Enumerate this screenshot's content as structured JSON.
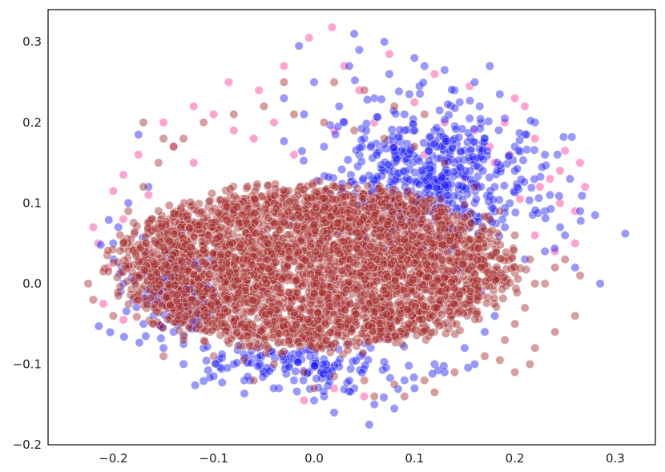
{
  "chart_data": {
    "type": "scatter",
    "title": "",
    "xlabel": "",
    "ylabel": "",
    "xlim": [
      -0.265,
      0.34
    ],
    "ylim": [
      -0.2,
      0.34
    ],
    "x_ticks": [
      -0.2,
      -0.1,
      0.0,
      0.1,
      0.2,
      0.3
    ],
    "y_ticks": [
      -0.2,
      -0.1,
      0.0,
      0.1,
      0.2,
      0.3
    ],
    "x_tick_labels": [
      "−0.2",
      "−0.1",
      "0.0",
      "0.1",
      "0.2",
      "0.3"
    ],
    "y_tick_labels": [
      "−0.2",
      "−0.1",
      "0.0",
      "0.1",
      "0.2",
      "0.3"
    ],
    "grid": false,
    "legend": "none",
    "marker_alpha": 0.45,
    "series": [
      {
        "color": "#ff3399",
        "points": [
          [
            0.018,
            0.318
          ],
          [
            -0.005,
            0.305
          ],
          [
            0.075,
            0.285
          ],
          [
            0.12,
            0.26
          ],
          [
            0.155,
            0.245
          ],
          [
            -0.03,
            0.27
          ],
          [
            -0.085,
            0.25
          ],
          [
            -0.12,
            0.22
          ],
          [
            -0.15,
            0.2
          ],
          [
            -0.175,
            0.16
          ],
          [
            -0.19,
            0.135
          ],
          [
            -0.2,
            0.115
          ],
          [
            -0.22,
            0.07
          ],
          [
            -0.215,
            0.05
          ],
          [
            -0.205,
            0.02
          ],
          [
            -0.21,
            -0.025
          ],
          [
            -0.19,
            -0.045
          ],
          [
            0.19,
            0.2
          ],
          [
            0.22,
            0.18
          ],
          [
            0.25,
            0.165
          ],
          [
            0.265,
            0.15
          ],
          [
            0.27,
            0.12
          ],
          [
            0.26,
            0.09
          ],
          [
            0.245,
            0.1
          ],
          [
            0.235,
            0.13
          ],
          [
            0.21,
            0.22
          ],
          [
            0.2,
            0.23
          ],
          [
            0.16,
            0.19
          ],
          [
            0.175,
            0.17
          ],
          [
            -0.01,
            -0.145
          ],
          [
            0.02,
            -0.13
          ],
          [
            0.05,
            -0.14
          ],
          [
            -0.055,
            0.24
          ],
          [
            -0.1,
            0.21
          ],
          [
            -0.14,
            0.17
          ],
          [
            -0.165,
            0.11
          ],
          [
            0.245,
            0.14
          ],
          [
            0.225,
            0.12
          ],
          [
            0.18,
            0.15
          ],
          [
            0.13,
            0.2
          ],
          [
            0.1,
            0.225
          ],
          [
            0.06,
            0.2
          ],
          [
            0.02,
            0.19
          ],
          [
            -0.02,
            0.16
          ],
          [
            -0.06,
            0.18
          ],
          [
            0.26,
            0.05
          ],
          [
            0.24,
            0.04
          ],
          [
            0.22,
            0.06
          ],
          [
            -0.19,
            0.08
          ],
          [
            -0.175,
            -0.02
          ],
          [
            0.11,
            0.16
          ],
          [
            0.15,
            0.13
          ],
          [
            0.08,
            0.17
          ],
          [
            -0.12,
            0.15
          ],
          [
            -0.08,
            0.19
          ],
          [
            0.205,
            0.105
          ],
          [
            0.195,
            0.16
          ],
          [
            0.045,
            0.24
          ],
          [
            0.03,
            0.27
          ],
          [
            -0.04,
            0.2
          ]
        ]
      },
      {
        "color": "#1a1aff",
        "points": [
          [
            -0.015,
            0.295
          ],
          [
            0.04,
            0.31
          ],
          [
            0.07,
            0.3
          ],
          [
            0.1,
            0.28
          ],
          [
            0.13,
            0.265
          ],
          [
            0.14,
            0.24
          ],
          [
            0.165,
            0.22
          ],
          [
            0.19,
            0.205
          ],
          [
            0.21,
            0.185
          ],
          [
            0.23,
            0.16
          ],
          [
            0.255,
            0.13
          ],
          [
            0.28,
            0.085
          ],
          [
            0.31,
            0.062
          ],
          [
            0.285,
            0.0
          ],
          [
            0.245,
            0.07
          ],
          [
            0.23,
            0.09
          ],
          [
            0.2,
            0.14
          ],
          [
            0.18,
            0.12
          ],
          [
            0.22,
            0.2
          ],
          [
            0.17,
            0.18
          ],
          [
            0.12,
            0.19
          ],
          [
            0.09,
            0.21
          ],
          [
            0.06,
            0.23
          ],
          [
            0.025,
            0.22
          ],
          [
            0.0,
            0.25
          ],
          [
            -0.03,
            0.23
          ],
          [
            0.05,
            0.18
          ],
          [
            0.08,
            0.15
          ],
          [
            0.11,
            0.13
          ],
          [
            0.14,
            0.15
          ],
          [
            0.16,
            0.1
          ],
          [
            0.19,
            0.07
          ],
          [
            0.21,
            0.03
          ],
          [
            0.18,
            -0.04
          ],
          [
            0.15,
            -0.08
          ],
          [
            0.12,
            -0.1
          ],
          [
            0.09,
            -0.12
          ],
          [
            0.06,
            -0.15
          ],
          [
            0.04,
            -0.13
          ],
          [
            0.01,
            -0.14
          ],
          [
            -0.02,
            -0.12
          ],
          [
            -0.05,
            -0.11
          ],
          [
            -0.08,
            -0.1
          ],
          [
            -0.11,
            -0.08
          ],
          [
            -0.14,
            -0.06
          ],
          [
            -0.16,
            -0.04
          ],
          [
            -0.18,
            -0.02
          ],
          [
            -0.19,
            0.0
          ],
          [
            -0.2,
            0.03
          ],
          [
            -0.195,
            0.07
          ],
          [
            -0.185,
            0.1
          ],
          [
            -0.175,
            0.185
          ],
          [
            -0.165,
            0.12
          ],
          [
            -0.13,
            -0.075
          ],
          [
            0.055,
            -0.175
          ],
          [
            0.08,
            -0.155
          ],
          [
            0.02,
            -0.16
          ],
          [
            -0.13,
            -0.1
          ],
          [
            0.1,
            -0.13
          ],
          [
            0.13,
            -0.11
          ],
          [
            0.105,
            0.245
          ],
          [
            0.075,
            0.26
          ],
          [
            0.035,
            0.27
          ],
          [
            0.155,
            0.205
          ],
          [
            0.185,
            0.235
          ],
          [
            0.2,
            0.17
          ],
          [
            0.235,
            0.11
          ],
          [
            0.25,
            0.06
          ],
          [
            0.265,
            0.09
          ],
          [
            0.14,
            0.18
          ],
          [
            0.115,
            0.17
          ],
          [
            0.09,
            0.19
          ],
          [
            0.065,
            0.165
          ],
          [
            0.03,
            0.2
          ],
          [
            0.01,
            0.17
          ],
          [
            -0.01,
            0.21
          ],
          [
            0.045,
            0.29
          ],
          [
            0.11,
            0.27
          ],
          [
            0.16,
            0.25
          ],
          [
            0.175,
            0.27
          ],
          [
            0.23,
            0.04
          ],
          [
            0.26,
            0.02
          ],
          [
            0.17,
            -0.06
          ],
          [
            0.16,
            -0.1
          ],
          [
            0.0,
            -0.145
          ],
          [
            -0.035,
            -0.13
          ],
          [
            -0.1,
            -0.115
          ],
          [
            -0.15,
            -0.08
          ],
          [
            -0.17,
            -0.05
          ],
          [
            -0.2,
            0.05
          ],
          [
            0.07,
            0.14
          ],
          [
            0.12,
            0.11
          ],
          [
            0.095,
            0.235
          ],
          [
            0.145,
            0.225
          ],
          [
            0.125,
            0.215
          ]
        ]
      },
      {
        "color": "#a52a2a",
        "points": [
          [
            -0.225,
            0.0
          ],
          [
            -0.22,
            -0.02
          ],
          [
            -0.21,
            0.015
          ],
          [
            -0.2,
            -0.04
          ],
          [
            -0.19,
            0.05
          ],
          [
            -0.185,
            0.09
          ],
          [
            -0.17,
            0.12
          ],
          [
            -0.155,
            0.15
          ],
          [
            -0.14,
            0.17
          ],
          [
            -0.13,
            0.18
          ],
          [
            -0.11,
            0.2
          ],
          [
            -0.08,
            0.21
          ],
          [
            -0.05,
            0.22
          ],
          [
            -0.02,
            0.21
          ],
          [
            0.01,
            0.2
          ],
          [
            0.04,
            0.19
          ],
          [
            0.07,
            0.18
          ],
          [
            0.1,
            0.17
          ],
          [
            0.13,
            0.15
          ],
          [
            0.16,
            0.12
          ],
          [
            0.185,
            0.09
          ],
          [
            0.2,
            0.06
          ],
          [
            0.215,
            0.03
          ],
          [
            0.22,
            0.0
          ],
          [
            0.21,
            -0.03
          ],
          [
            0.2,
            -0.05
          ],
          [
            0.19,
            -0.07
          ],
          [
            0.17,
            -0.09
          ],
          [
            0.14,
            -0.11
          ],
          [
            0.11,
            -0.12
          ],
          [
            0.08,
            -0.125
          ],
          [
            0.05,
            -0.12
          ],
          [
            0.02,
            -0.115
          ],
          [
            -0.01,
            -0.11
          ],
          [
            -0.04,
            -0.1
          ],
          [
            -0.07,
            -0.095
          ],
          [
            -0.1,
            -0.09
          ],
          [
            -0.13,
            -0.07
          ],
          [
            -0.16,
            -0.05
          ],
          [
            -0.175,
            -0.02
          ],
          [
            -0.15,
            -0.09
          ],
          [
            -0.17,
            0.2
          ],
          [
            -0.15,
            0.18
          ],
          [
            0.26,
            -0.04
          ],
          [
            0.24,
            -0.06
          ],
          [
            0.22,
            -0.08
          ],
          [
            0.23,
            0.0
          ],
          [
            0.24,
            0.02
          ],
          [
            0.265,
            0.01
          ],
          [
            0.25,
            0.03
          ],
          [
            0.02,
            0.25
          ],
          [
            0.05,
            0.24
          ],
          [
            0.08,
            0.22
          ],
          [
            -0.03,
            0.25
          ],
          [
            0.11,
            0.21
          ],
          [
            -0.205,
            0.015
          ],
          [
            -0.195,
            -0.015
          ],
          [
            0.215,
            -0.1
          ],
          [
            0.2,
            -0.11
          ],
          [
            0.185,
            -0.095
          ],
          [
            0.06,
            -0.14
          ],
          [
            0.0,
            -0.13
          ],
          [
            -0.06,
            -0.12
          ],
          [
            0.09,
            -0.14
          ],
          [
            0.12,
            -0.135
          ]
        ]
      }
    ],
    "core_clusters": [
      {
        "color": "#a52a2a",
        "center": [
          0.0,
          0.02
        ],
        "spread": [
          0.17,
          0.085
        ],
        "count": 3500
      },
      {
        "color": "#1a1aff",
        "center": [
          0.12,
          0.13
        ],
        "spread": [
          0.09,
          0.07
        ],
        "count": 500
      },
      {
        "color": "#1a1aff",
        "center": [
          -0.14,
          -0.01
        ],
        "spread": [
          0.05,
          0.05
        ],
        "count": 140
      },
      {
        "color": "#1a1aff",
        "center": [
          0.0,
          -0.1
        ],
        "spread": [
          0.11,
          0.03
        ],
        "count": 150
      }
    ]
  }
}
